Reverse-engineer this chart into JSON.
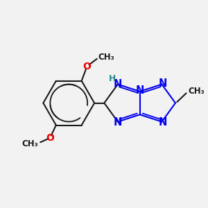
{
  "bg_color": "#f2f2f2",
  "bond_color": "#1a1a1a",
  "N_color": "#0000ee",
  "O_color": "#ee0000",
  "NH_color": "#2e8b8b",
  "bond_width": 1.5,
  "figsize": [
    3.0,
    3.0
  ],
  "dpi": 100,
  "xlim": [
    0,
    10
  ],
  "ylim": [
    0,
    10
  ]
}
